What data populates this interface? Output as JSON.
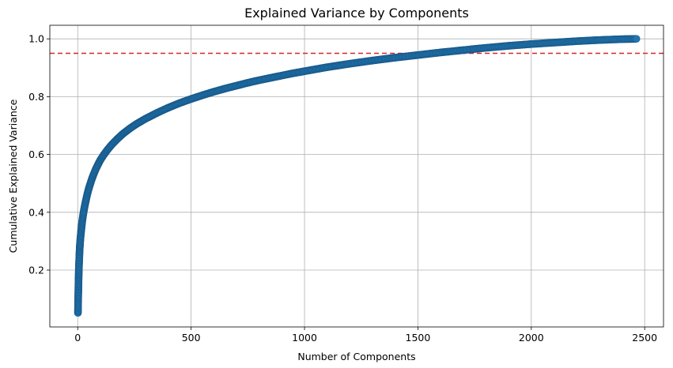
{
  "chart_data": {
    "type": "scatter",
    "title": "Explained Variance by Components",
    "xlabel": "Number of Components",
    "ylabel": "Cumulative Explained Variance",
    "xlim": [
      -123,
      2583
    ],
    "ylim": [
      0.0033,
      1.047
    ],
    "xticks": [
      0,
      500,
      1000,
      1500,
      2000,
      2500
    ],
    "xtick_labels": [
      "0",
      "500",
      "1000",
      "1500",
      "2000",
      "2500"
    ],
    "yticks": [
      0.2,
      0.4,
      0.6,
      0.8,
      1.0
    ],
    "ytick_labels": [
      "0.2",
      "0.4",
      "0.6",
      "0.8",
      "1.0"
    ],
    "grid": true,
    "threshold": {
      "y": 0.95,
      "style": "dashed",
      "color": "#d62728"
    },
    "series": [
      {
        "marker": "circle",
        "line": true,
        "color": "#1f77b4",
        "edge_color": "#1a5a8a",
        "x": [
          1,
          2,
          3,
          4,
          5,
          6,
          7,
          8,
          9,
          10,
          12,
          14,
          16,
          18,
          20,
          23,
          26,
          30,
          35,
          40,
          45,
          50,
          60,
          70,
          80,
          90,
          100,
          115,
          130,
          150,
          175,
          200,
          230,
          260,
          300,
          350,
          400,
          450,
          500,
          550,
          600,
          650,
          700,
          750,
          800,
          850,
          900,
          950,
          1000,
          1100,
          1200,
          1300,
          1400,
          1500,
          1600,
          1700,
          1800,
          1900,
          2000,
          2100,
          2200,
          2300,
          2400,
          2463
        ],
        "y": [
          0.052,
          0.1,
          0.138,
          0.175,
          0.203,
          0.225,
          0.243,
          0.262,
          0.278,
          0.29,
          0.31,
          0.327,
          0.342,
          0.357,
          0.37,
          0.386,
          0.401,
          0.418,
          0.437,
          0.455,
          0.471,
          0.485,
          0.51,
          0.531,
          0.55,
          0.566,
          0.581,
          0.599,
          0.615,
          0.634,
          0.654,
          0.672,
          0.69,
          0.706,
          0.724,
          0.744,
          0.762,
          0.778,
          0.792,
          0.805,
          0.817,
          0.828,
          0.838,
          0.848,
          0.857,
          0.865,
          0.873,
          0.881,
          0.888,
          0.902,
          0.914,
          0.925,
          0.935,
          0.944,
          0.953,
          0.961,
          0.969,
          0.976,
          0.982,
          0.987,
          0.992,
          0.996,
          0.999,
          1.0
        ]
      }
    ]
  }
}
